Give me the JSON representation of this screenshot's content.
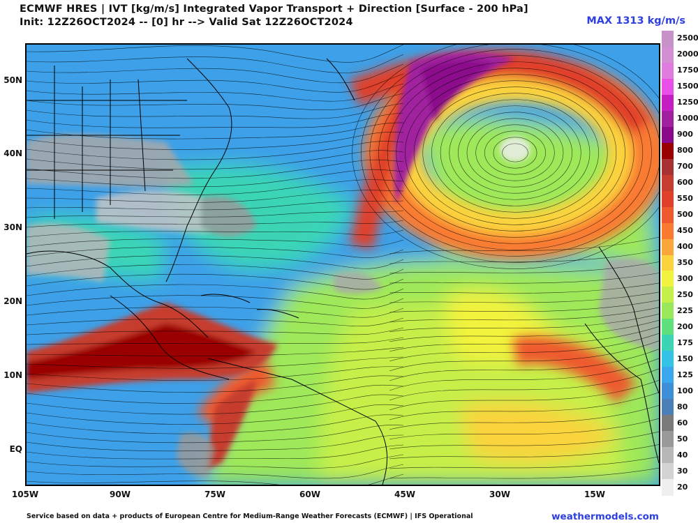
{
  "header": {
    "title_line1": "ECMWF HRES | IVT [kg/m/s] Integrated Vapor Transport + Direction [Surface - 200 hPa]",
    "title_line2": "Init: 12Z26OCT2024 -- [0] hr --> Valid Sat 12Z26OCT2024",
    "max_label": "MAX 1313 kg/m/s"
  },
  "map": {
    "lat_labels": [
      "50N",
      "40N",
      "30N",
      "20N",
      "10N",
      "EQ"
    ],
    "lon_labels": [
      "105W",
      "90W",
      "75W",
      "60W",
      "45W",
      "30W",
      "15W"
    ],
    "colors": {
      "ocean_base": "#3da0e8",
      "land_gray": "#9a9a9a",
      "border": "#000000",
      "streamline": "#000000"
    }
  },
  "colorbar": {
    "levels": [
      {
        "value": "2500",
        "color": "#c792c7"
      },
      {
        "value": "2000",
        "color": "#d48fd4"
      },
      {
        "value": "1750",
        "color": "#e07be0"
      },
      {
        "value": "1500",
        "color": "#ea4fea"
      },
      {
        "value": "1250",
        "color": "#c41ec4"
      },
      {
        "value": "1000",
        "color": "#a0209f"
      },
      {
        "value": "900",
        "color": "#8b0a8b"
      },
      {
        "value": "800",
        "color": "#9a0000"
      },
      {
        "value": "700",
        "color": "#a83232"
      },
      {
        "value": "600",
        "color": "#c63d2f"
      },
      {
        "value": "550",
        "color": "#e0402a"
      },
      {
        "value": "500",
        "color": "#ee5a2d"
      },
      {
        "value": "450",
        "color": "#f97a30"
      },
      {
        "value": "400",
        "color": "#fba63a"
      },
      {
        "value": "350",
        "color": "#fbd33c"
      },
      {
        "value": "300",
        "color": "#f2f33e"
      },
      {
        "value": "250",
        "color": "#c6ef4a"
      },
      {
        "value": "225",
        "color": "#98e85a"
      },
      {
        "value": "200",
        "color": "#5ee07a"
      },
      {
        "value": "175",
        "color": "#3bd5b6"
      },
      {
        "value": "150",
        "color": "#33c3e6"
      },
      {
        "value": "125",
        "color": "#3aa8ee"
      },
      {
        "value": "100",
        "color": "#3d8fd8"
      },
      {
        "value": "80",
        "color": "#4a7fb8"
      },
      {
        "value": "60",
        "color": "#7a7a7a"
      },
      {
        "value": "50",
        "color": "#999999"
      },
      {
        "value": "40",
        "color": "#b7b7b7"
      },
      {
        "value": "30",
        "color": "#d3d3d3"
      },
      {
        "value": "20",
        "color": "#efefef"
      }
    ]
  },
  "footer": {
    "credit": "Service based on data + products of European Centre for Medium-Range Weather Forecasts (ECMWF) | IFS Operational",
    "site": "weathermodels.com"
  }
}
